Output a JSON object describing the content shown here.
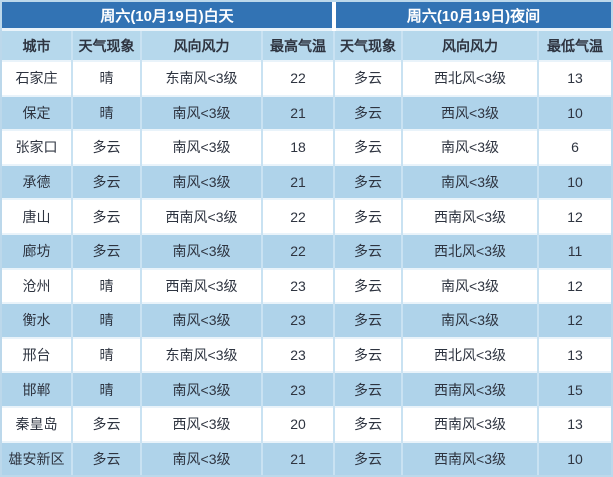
{
  "table": {
    "day_header": "周六(10月19日)白天",
    "night_header": "周六(10月19日)夜间",
    "columns": [
      "城市",
      "天气现象",
      "风向风力",
      "最高气温",
      "天气现象",
      "风向风力",
      "最低气温"
    ],
    "rows": [
      {
        "city": "石家庄",
        "day_weather": "晴",
        "day_wind": "东南风<3级",
        "high": "22",
        "night_weather": "多云",
        "night_wind": "西北风<3级",
        "low": "13"
      },
      {
        "city": "保定",
        "day_weather": "晴",
        "day_wind": "南风<3级",
        "high": "21",
        "night_weather": "多云",
        "night_wind": "西风<3级",
        "low": "10"
      },
      {
        "city": "张家口",
        "day_weather": "多云",
        "day_wind": "南风<3级",
        "high": "18",
        "night_weather": "多云",
        "night_wind": "南风<3级",
        "low": "6"
      },
      {
        "city": "承德",
        "day_weather": "多云",
        "day_wind": "南风<3级",
        "high": "21",
        "night_weather": "多云",
        "night_wind": "南风<3级",
        "low": "10"
      },
      {
        "city": "唐山",
        "day_weather": "多云",
        "day_wind": "西南风<3级",
        "high": "22",
        "night_weather": "多云",
        "night_wind": "西南风<3级",
        "low": "12"
      },
      {
        "city": "廊坊",
        "day_weather": "多云",
        "day_wind": "南风<3级",
        "high": "22",
        "night_weather": "多云",
        "night_wind": "西北风<3级",
        "low": "11"
      },
      {
        "city": "沧州",
        "day_weather": "晴",
        "day_wind": "西南风<3级",
        "high": "23",
        "night_weather": "多云",
        "night_wind": "南风<3级",
        "low": "12"
      },
      {
        "city": "衡水",
        "day_weather": "晴",
        "day_wind": "南风<3级",
        "high": "23",
        "night_weather": "多云",
        "night_wind": "南风<3级",
        "low": "12"
      },
      {
        "city": "邢台",
        "day_weather": "晴",
        "day_wind": "东南风<3级",
        "high": "23",
        "night_weather": "多云",
        "night_wind": "西北风<3级",
        "low": "13"
      },
      {
        "city": "邯郸",
        "day_weather": "晴",
        "day_wind": "南风<3级",
        "high": "23",
        "night_weather": "多云",
        "night_wind": "西南风<3级",
        "low": "15"
      },
      {
        "city": "秦皇岛",
        "day_weather": "多云",
        "day_wind": "西风<3级",
        "high": "20",
        "night_weather": "多云",
        "night_wind": "西南风<3级",
        "low": "13"
      },
      {
        "city": "雄安新区",
        "day_weather": "多云",
        "day_wind": "南风<3级",
        "high": "21",
        "night_weather": "多云",
        "night_wind": "西南风<3级",
        "low": "10"
      }
    ]
  },
  "colors": {
    "header_bg": "#3273B4",
    "header_text": "#FFFFFF",
    "subheader_bg": "#B6D8EC",
    "row_alt_bg": "#AFD3EA",
    "row_bg": "#FFFFFF",
    "cell_text": "#2E3440",
    "grid_vertical": "#C9E2F2",
    "grid_horizontal": "#E9F3FA",
    "outer_border": "#BCD8EB"
  }
}
